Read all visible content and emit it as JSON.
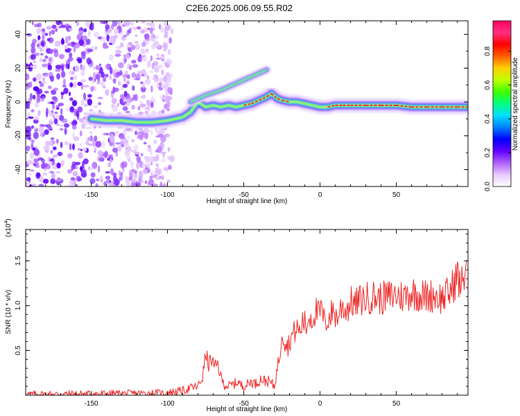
{
  "title": "C2E6.2025.006.09.55.R02",
  "chart_data": [
    {
      "type": "heatmap",
      "name": "spectrum",
      "xlabel": "Height of straight line (km)",
      "ylabel": "Frequency (Hz)",
      "xlim": [
        -193,
        97
      ],
      "ylim": [
        -50,
        48
      ],
      "xticks": [
        -150,
        -100,
        -50,
        0,
        50
      ],
      "yticks": [
        -40,
        -20,
        0,
        20,
        40
      ],
      "colorbar": {
        "label": "Normalized spectral amplitude",
        "range": [
          0.0,
          0.98
        ],
        "ticks": [
          "0.0",
          "0.2",
          "0.4",
          "0.6",
          "0.8"
        ],
        "tick_values": [
          0.0,
          0.2,
          0.4,
          0.6,
          0.8
        ],
        "colors": [
          "#ffffff",
          "#e8c8ff",
          "#b060ff",
          "#6000ff",
          "#0000ff",
          "#0080ff",
          "#00e0ff",
          "#00ff80",
          "#40ff00",
          "#c0ff00",
          "#ffd000",
          "#ff6000",
          "#ff0000",
          "#ff3080",
          "#ff0060"
        ]
      },
      "ridge": {
        "x": [
          -150,
          -140,
          -130,
          -120,
          -110,
          -100,
          -90,
          -85,
          -80,
          -75,
          -70,
          -65,
          -60,
          -55,
          -50,
          -45,
          -40,
          -35,
          -32,
          -28,
          -25,
          -20,
          -15,
          -10,
          -5,
          0,
          5,
          10,
          15,
          20,
          30,
          40,
          50,
          60,
          70,
          80,
          90,
          97
        ],
        "y": [
          -10,
          -11,
          -11,
          -12,
          -12,
          -11,
          -9,
          -6,
          0,
          -3,
          -2,
          -3,
          -2,
          -3,
          -2,
          -1,
          1,
          3,
          5,
          2,
          1,
          0,
          0,
          -1,
          -2,
          -3,
          -3,
          -2,
          -2,
          -2,
          -2,
          -2,
          -2,
          -3,
          -3,
          -3,
          -3,
          -3
        ]
      },
      "branch": {
        "x": [
          -85,
          -75,
          -65,
          -55,
          -45,
          -35
        ],
        "y": [
          0,
          4,
          7,
          11,
          15,
          19
        ]
      },
      "noise_region": {
        "x_from": -193,
        "x_to": -105
      }
    },
    {
      "type": "line",
      "name": "snr",
      "xlabel": "Height of straight line (km)",
      "ylabel": "SNR (10 * v/v)",
      "y_multiplier": "(x10",
      "y_multiplier_exp": "4",
      "y_multiplier_close": ")",
      "xlim": [
        -193,
        97
      ],
      "ylim": [
        0,
        1.85
      ],
      "xticks": [
        -150,
        -100,
        -50,
        0,
        50
      ],
      "yticks": [
        0.5,
        1.0,
        1.5
      ],
      "ytick_labels": [
        "0.5",
        "1.0",
        "1.5"
      ],
      "color": "#ee2222",
      "series": {
        "x": [
          -193,
          -150,
          -120,
          -100,
          -95,
          -90,
          -85,
          -80,
          -77,
          -75,
          -73,
          -71,
          -69,
          -67,
          -65,
          -63,
          -60,
          -57,
          -54,
          -51,
          -48,
          -45,
          -42,
          -39,
          -36,
          -33,
          -30,
          -28,
          -26,
          -25,
          -23,
          -21,
          -19,
          -17,
          -15,
          -13,
          -11,
          -9,
          -7,
          -5,
          -3,
          -1,
          1,
          3,
          5,
          7,
          9,
          11,
          13,
          15,
          17,
          19,
          21,
          23,
          25,
          30,
          35,
          40,
          45,
          50,
          55,
          60,
          65,
          70,
          75,
          80,
          85,
          88,
          90,
          92,
          94,
          96
        ],
        "y": [
          0.01,
          0.015,
          0.02,
          0.025,
          0.04,
          0.05,
          0.08,
          0.1,
          0.2,
          0.45,
          0.35,
          0.4,
          0.3,
          0.35,
          0.2,
          0.12,
          0.1,
          0.12,
          0.15,
          0.1,
          0.12,
          0.15,
          0.13,
          0.18,
          0.16,
          0.15,
          0.1,
          0.3,
          0.5,
          0.75,
          0.6,
          0.55,
          0.65,
          0.7,
          0.75,
          0.7,
          0.85,
          0.75,
          0.9,
          0.85,
          0.95,
          0.9,
          0.95,
          0.8,
          0.85,
          0.9,
          0.95,
          0.85,
          0.95,
          1.0,
          0.95,
          1.0,
          1.05,
          1.0,
          1.05,
          1.08,
          1.1,
          1.08,
          1.1,
          1.12,
          1.1,
          1.15,
          1.12,
          1.1,
          1.12,
          1.08,
          1.15,
          1.25,
          1.35,
          1.2,
          1.3,
          1.5
        ]
      }
    }
  ]
}
